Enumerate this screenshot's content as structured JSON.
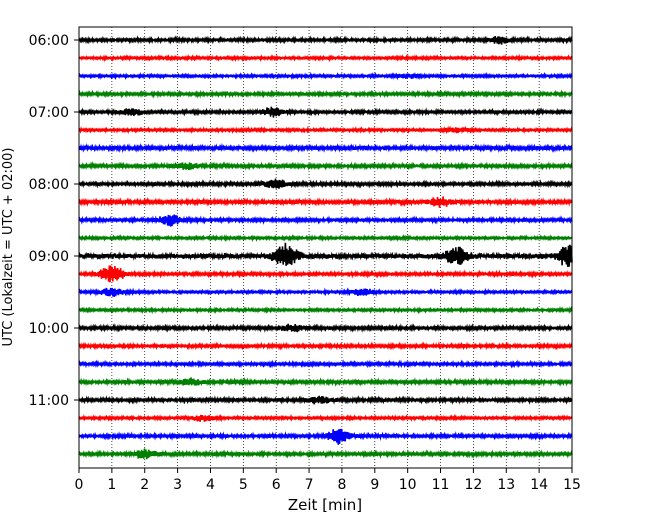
{
  "chart_data": {
    "type": "line",
    "xlabel": "Zeit  [min]",
    "ylabel": "UTC (Lokalzeit = UTC + 02:00)",
    "xlim": [
      0,
      15
    ],
    "x_ticks": [
      "0",
      "1",
      "2",
      "3",
      "4",
      "5",
      "6",
      "7",
      "8",
      "9",
      "10",
      "11",
      "12",
      "13",
      "14",
      "15"
    ],
    "y_ticks": [
      "06:00",
      "07:00",
      "08:00",
      "09:00",
      "10:00",
      "11:00"
    ],
    "grid": "vertical-dotted",
    "colors": [
      "#000000",
      "#ff0000",
      "#0000ff",
      "#008000"
    ],
    "traces": [
      {
        "time": "06:00",
        "color": "#000000",
        "amp": 1.2,
        "events": [
          {
            "x": 12.8,
            "a": 3
          }
        ]
      },
      {
        "time": "06:15",
        "color": "#ff0000",
        "amp": 1.0,
        "events": []
      },
      {
        "time": "06:30",
        "color": "#0000ff",
        "amp": 1.0,
        "events": [
          {
            "x": 10.0,
            "a": 2
          }
        ]
      },
      {
        "time": "06:45",
        "color": "#008000",
        "amp": 1.2,
        "events": []
      },
      {
        "time": "07:00",
        "color": "#000000",
        "amp": 1.2,
        "events": [
          {
            "x": 5.9,
            "a": 4
          },
          {
            "x": 1.6,
            "a": 3
          }
        ]
      },
      {
        "time": "07:15",
        "color": "#ff0000",
        "amp": 1.0,
        "events": [
          {
            "x": 11.5,
            "a": 2
          }
        ]
      },
      {
        "time": "07:30",
        "color": "#0000ff",
        "amp": 1.5,
        "events": []
      },
      {
        "time": "07:45",
        "color": "#008000",
        "amp": 1.3,
        "events": [
          {
            "x": 3.3,
            "a": 3
          }
        ]
      },
      {
        "time": "08:00",
        "color": "#000000",
        "amp": 1.3,
        "events": [
          {
            "x": 6.0,
            "a": 4
          }
        ]
      },
      {
        "time": "08:15",
        "color": "#ff0000",
        "amp": 1.5,
        "events": [
          {
            "x": 11.0,
            "a": 4
          }
        ]
      },
      {
        "time": "08:30",
        "color": "#0000ff",
        "amp": 1.2,
        "events": [
          {
            "x": 2.8,
            "a": 5
          }
        ]
      },
      {
        "time": "08:45",
        "color": "#008000",
        "amp": 1.0,
        "events": []
      },
      {
        "time": "09:00",
        "color": "#000000",
        "amp": 2.0,
        "events": [
          {
            "x": 6.3,
            "a": 12
          },
          {
            "x": 11.5,
            "a": 8
          },
          {
            "x": 14.9,
            "a": 10
          }
        ]
      },
      {
        "time": "09:15",
        "color": "#ff0000",
        "amp": 1.2,
        "events": [
          {
            "x": 1.0,
            "a": 8
          }
        ]
      },
      {
        "time": "09:30",
        "color": "#0000ff",
        "amp": 1.0,
        "events": [
          {
            "x": 1.0,
            "a": 4
          },
          {
            "x": 8.6,
            "a": 3
          }
        ]
      },
      {
        "time": "09:45",
        "color": "#008000",
        "amp": 1.0,
        "events": []
      },
      {
        "time": "10:00",
        "color": "#000000",
        "amp": 1.3,
        "events": [
          {
            "x": 6.5,
            "a": 3
          }
        ]
      },
      {
        "time": "10:15",
        "color": "#ff0000",
        "amp": 1.2,
        "events": []
      },
      {
        "time": "10:30",
        "color": "#0000ff",
        "amp": 1.2,
        "events": []
      },
      {
        "time": "10:45",
        "color": "#008000",
        "amp": 1.3,
        "events": [
          {
            "x": 3.4,
            "a": 3
          }
        ]
      },
      {
        "time": "11:00",
        "color": "#000000",
        "amp": 1.3,
        "events": [
          {
            "x": 7.3,
            "a": 3
          }
        ]
      },
      {
        "time": "11:15",
        "color": "#ff0000",
        "amp": 1.0,
        "events": [
          {
            "x": 3.8,
            "a": 3
          }
        ]
      },
      {
        "time": "11:30",
        "color": "#0000ff",
        "amp": 1.3,
        "events": [
          {
            "x": 7.9,
            "a": 7
          }
        ]
      },
      {
        "time": "11:45",
        "color": "#008000",
        "amp": 1.3,
        "events": [
          {
            "x": 2.0,
            "a": 4
          }
        ]
      }
    ]
  }
}
